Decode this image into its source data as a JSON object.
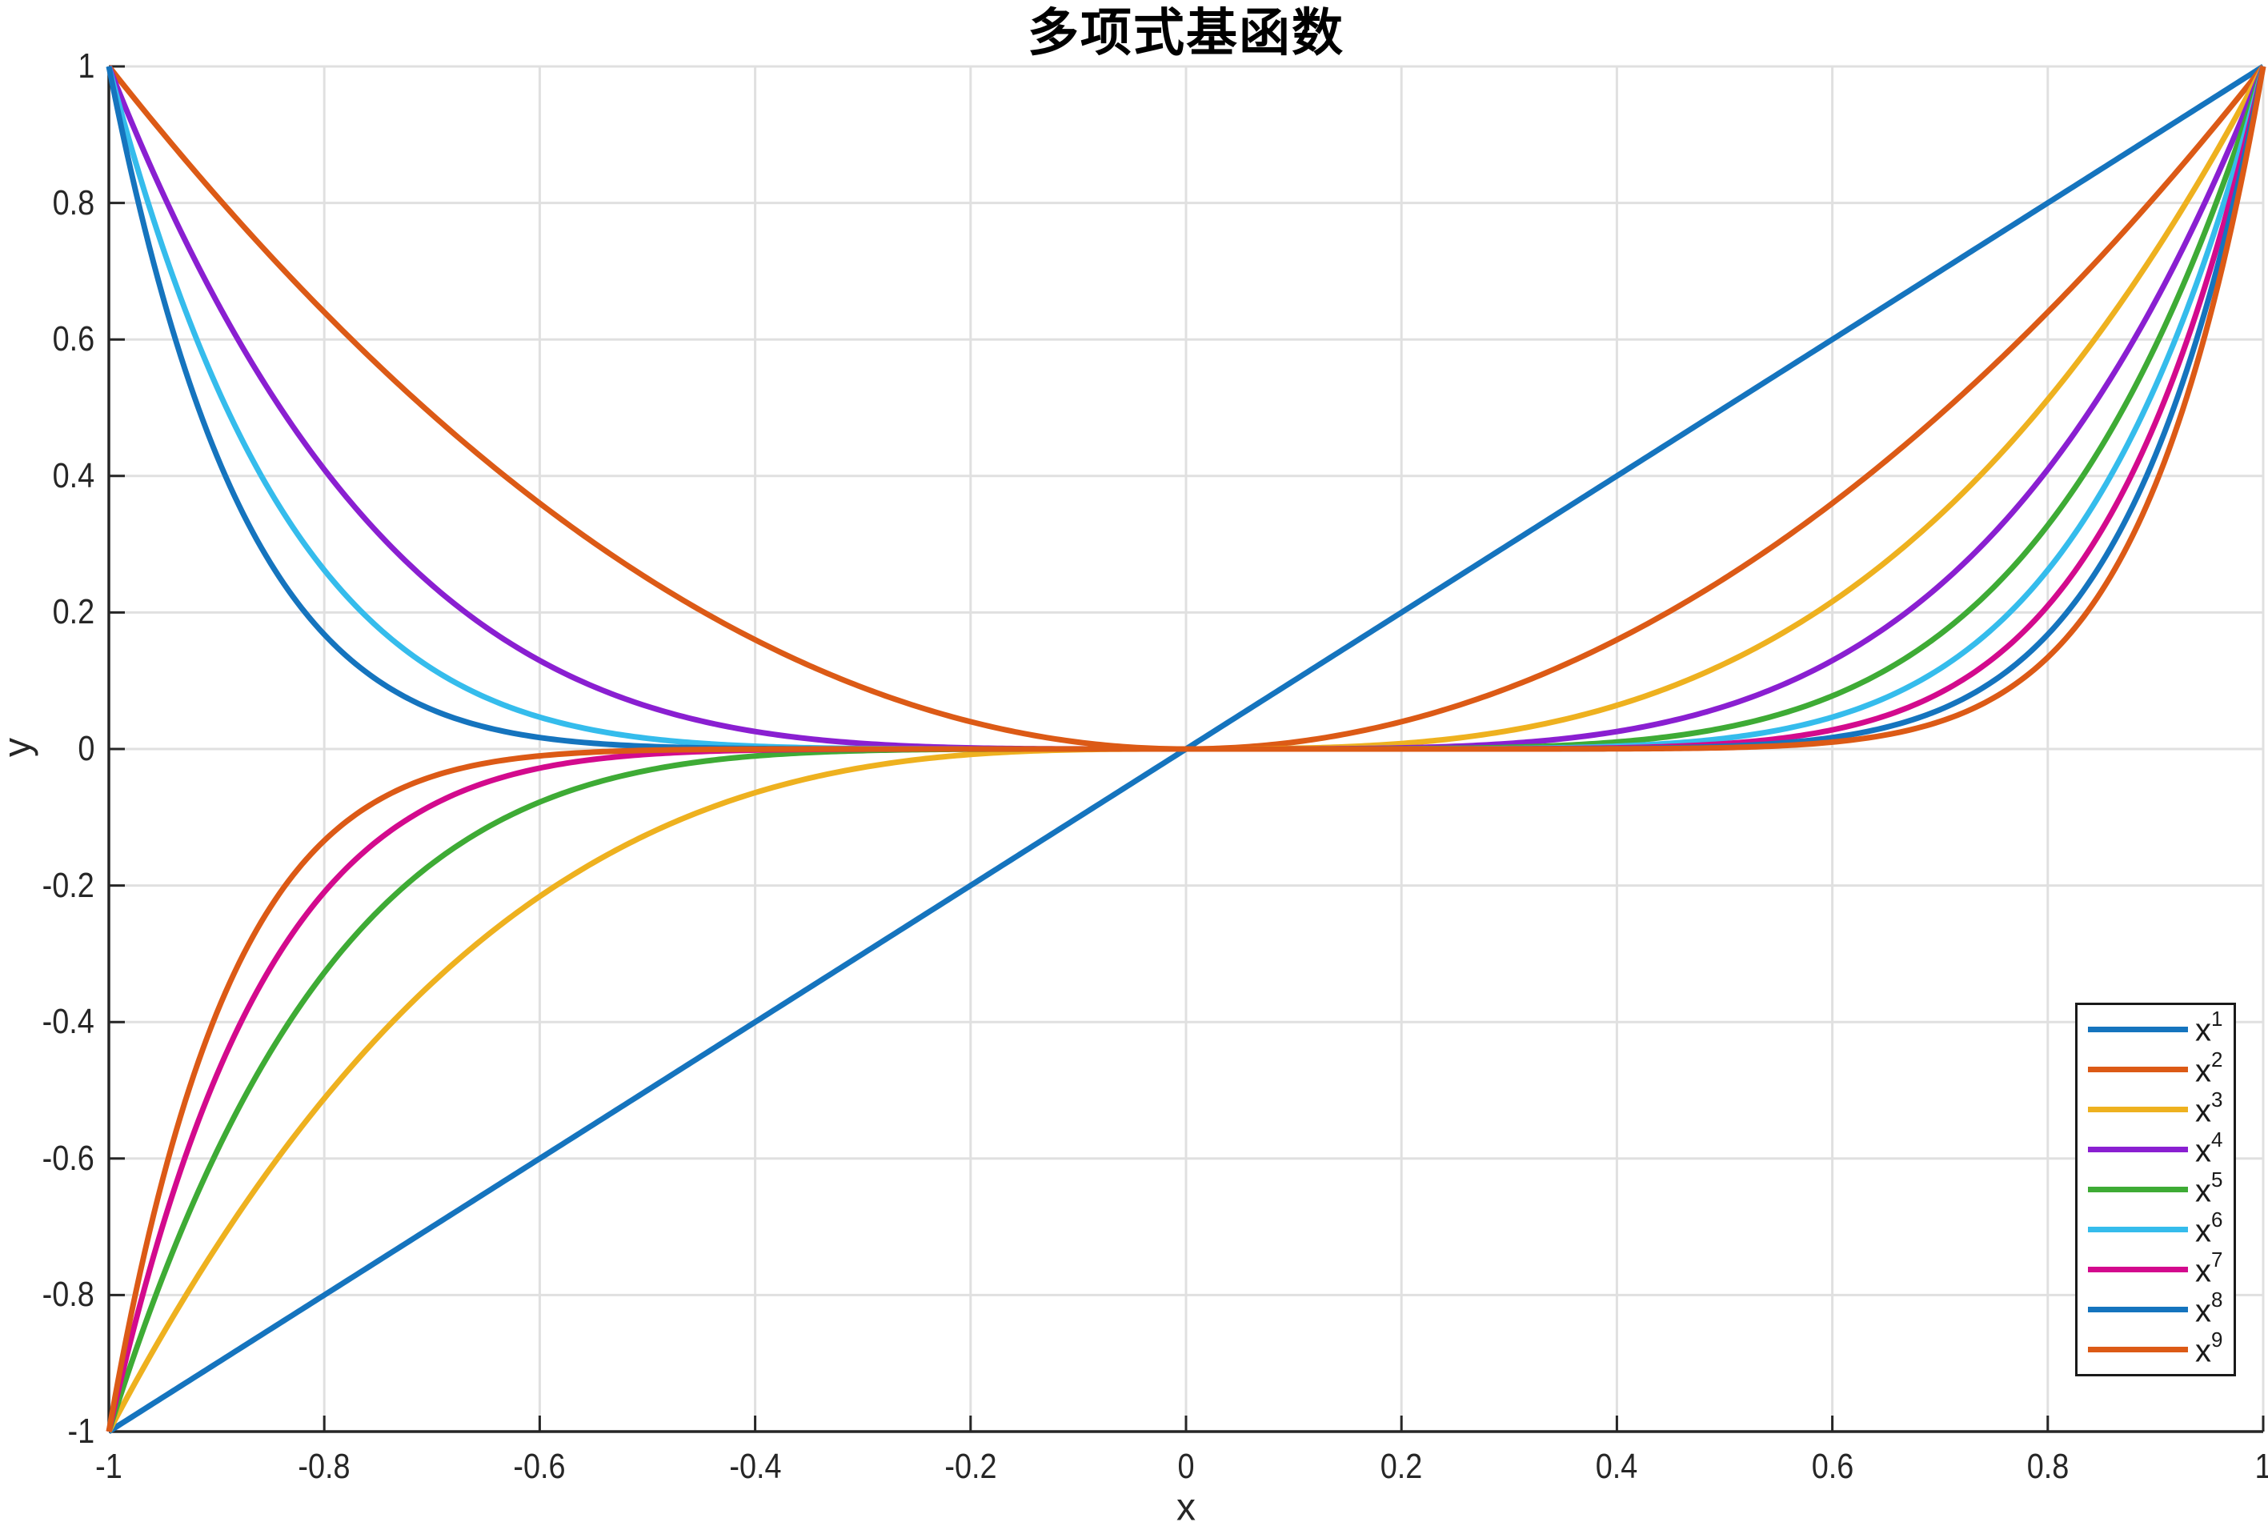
{
  "chart_data": {
    "type": "line",
    "title": "多项式基函数",
    "xlabel": "x",
    "ylabel": "y",
    "xlim": [
      -1,
      1
    ],
    "ylim": [
      -1,
      1
    ],
    "grid": "on",
    "legend_position": "southeast",
    "formula": "y = x^n for n = 1..9, sampled over x in [-1, 1]",
    "xticks": {
      "values": [
        -1,
        -0.8,
        -0.6,
        -0.4,
        -0.2,
        0,
        0.2,
        0.4,
        0.6,
        0.8,
        1
      ],
      "labels": [
        "-1",
        "-0.8",
        "-0.6",
        "-0.4",
        "-0.2",
        "0",
        "0.2",
        "0.4",
        "0.6",
        "0.8",
        "1"
      ]
    },
    "yticks": {
      "values": [
        -1,
        -0.8,
        -0.6,
        -0.4,
        -0.2,
        0,
        0.2,
        0.4,
        0.6,
        0.8,
        1
      ],
      "labels": [
        "-1",
        "-0.8",
        "-0.6",
        "-0.4",
        "-0.2",
        "0",
        "0.2",
        "0.4",
        "0.6",
        "0.8",
        "1"
      ]
    },
    "series": [
      {
        "name": "x^1",
        "base": "x",
        "exponent": 1,
        "color": "#1574be"
      },
      {
        "name": "x^2",
        "base": "x",
        "exponent": 2,
        "color": "#dc5a16"
      },
      {
        "name": "x^3",
        "base": "x",
        "exponent": 3,
        "color": "#eeb11f"
      },
      {
        "name": "x^4",
        "base": "x",
        "exponent": 4,
        "color": "#8a1fd1"
      },
      {
        "name": "x^5",
        "base": "x",
        "exponent": 5,
        "color": "#3eab35"
      },
      {
        "name": "x^6",
        "base": "x",
        "exponent": 6,
        "color": "#35bcec"
      },
      {
        "name": "x^7",
        "base": "x",
        "exponent": 7,
        "color": "#d30a8d"
      },
      {
        "name": "x^8",
        "base": "x",
        "exponent": 8,
        "color": "#1574be"
      },
      {
        "name": "x^9",
        "base": "x",
        "exponent": 9,
        "color": "#dc5a16"
      }
    ]
  },
  "style_colors": {
    "background": "#ffffff",
    "grid": "#e0e0e0",
    "axis": "#262626",
    "tick_text": "#262626",
    "title_text": "#000000",
    "legend_border": "#1a1a1a"
  }
}
